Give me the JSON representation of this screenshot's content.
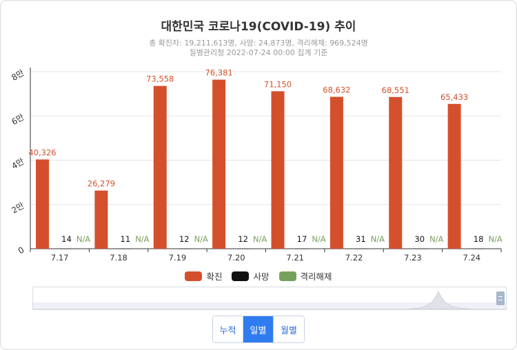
{
  "chart_data": {
    "type": "bar",
    "title": "대한민국 코로나19(COVID-19) 추이",
    "subtitle_lines": [
      "총 확진자: 19,211,613명, 사망: 24,873명, 격리해제: 969,524명",
      "질병관리청 2022-07-24 00:00 집계 기준"
    ],
    "categories": [
      "7.17",
      "7.18",
      "7.19",
      "7.20",
      "7.21",
      "7.22",
      "7.23",
      "7.24"
    ],
    "series": [
      {
        "name": "확진",
        "color": "#d4502c",
        "values": [
          40326,
          26279,
          73558,
          76381,
          71150,
          68632,
          68551,
          65433
        ],
        "labels": [
          "40,326",
          "26,279",
          "73,558",
          "76,381",
          "71,150",
          "68,632",
          "68,551",
          "65,433"
        ]
      },
      {
        "name": "사망",
        "color": "#111111",
        "values": [
          14,
          11,
          12,
          12,
          17,
          31,
          30,
          18
        ],
        "labels": [
          "14",
          "11",
          "12",
          "12",
          "17",
          "31",
          "30",
          "18"
        ]
      },
      {
        "name": "격리해제",
        "color": "#77a05a",
        "values": [
          null,
          null,
          null,
          null,
          null,
          null,
          null,
          null
        ],
        "labels": [
          "N/A",
          "N/A",
          "N/A",
          "N/A",
          "N/A",
          "N/A",
          "N/A",
          "N/A"
        ]
      }
    ],
    "yticks": [
      0,
      20000,
      40000,
      60000,
      80000
    ],
    "ytick_labels": [
      "0",
      "2만",
      "4만",
      "6만",
      "8만"
    ],
    "ylim": [
      0,
      80000
    ],
    "grid": true,
    "legend": "bottom"
  },
  "view_buttons": [
    {
      "label": "누적",
      "active": false
    },
    {
      "label": "일별",
      "active": true
    },
    {
      "label": "월별",
      "active": false
    }
  ]
}
